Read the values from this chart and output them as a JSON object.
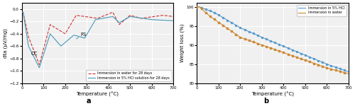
{
  "chart_a": {
    "xlim": [
      0,
      700
    ],
    "ylim": [
      -1.2,
      0.1
    ],
    "xlabel": "Temperature (°C)",
    "ylabel": "dta (μV/mg)",
    "xticks": [
      0,
      100,
      200,
      300,
      400,
      500,
      600,
      700
    ],
    "yticks": [
      -1.2,
      -1.0,
      -0.8,
      -0.6,
      -0.4,
      -0.2,
      0.0
    ],
    "legend_water": "Immersion in water for 28 days",
    "legend_hcl": "Immersion in 5% HCl solution for 28 days",
    "cc_label": "CC",
    "fs_label": "FS",
    "label": "a",
    "water_color": "#cc3333",
    "hcl_color": "#4499bb",
    "bg_color": "#f0f0f0",
    "grid_color": "#ffffff"
  },
  "chart_b": {
    "xlim": [
      0,
      700
    ],
    "ylim": [
      80,
      101
    ],
    "xlabel": "Temperature (°C)",
    "ylabel": "Weight loss (%)",
    "xticks": [
      0,
      100,
      200,
      300,
      400,
      500,
      600,
      700
    ],
    "yticks": [
      80,
      85,
      90,
      95,
      100
    ],
    "legend_hcl": "Immersion in 5% HCl",
    "legend_water": "Immersion in water",
    "label": "b",
    "hcl_color": "#5599cc",
    "water_color": "#cc8833",
    "bg_color": "#f0f0f0",
    "grid_color": "#ffffff"
  }
}
